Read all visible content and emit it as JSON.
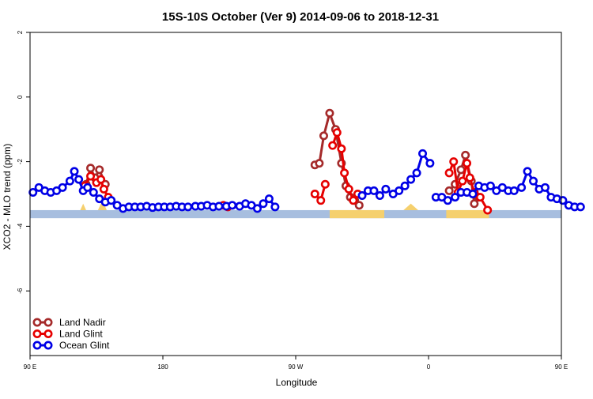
{
  "chart_data": {
    "type": "line",
    "title": "15S-10S October (Ver 9)   2014-09-06 to 2018-12-31",
    "xlabel": "Longitude",
    "ylabel": "XCO2 - MLO trend (ppm)",
    "xlim": [
      90,
      450
    ],
    "ylim": [
      -8,
      2
    ],
    "x_ticks": [
      {
        "value": 90,
        "label": "90 E"
      },
      {
        "value": 180,
        "label": "180"
      },
      {
        "value": 270,
        "label": "90 W"
      },
      {
        "value": 360,
        "label": "0"
      },
      {
        "value": 450,
        "label": "90 E"
      },
      {
        "value": 540,
        "label": "180"
      }
    ],
    "y_ticks": [
      {
        "value": 2,
        "label": "2"
      },
      {
        "value": 0,
        "label": "0"
      },
      {
        "value": -2,
        "label": "-2"
      },
      {
        "value": -4,
        "label": "-4"
      },
      {
        "value": -6,
        "label": "-6"
      }
    ],
    "land_band": {
      "ymin": -3.75,
      "ymax": -3.5,
      "ocean_color": "#a7bedf",
      "land_color": "#f5d06e"
    },
    "land_segments": [
      [
        293,
        330
      ],
      [
        372,
        401
      ]
    ],
    "land_bumps": [
      [
        124,
        128,
        -3.3
      ],
      [
        136,
        142,
        -3.2
      ],
      [
        481,
        485,
        -3.3
      ],
      [
        491,
        495,
        -3.2
      ],
      [
        343,
        353,
        -3.3
      ]
    ],
    "legend": {
      "position": "bottom-left",
      "entries": [
        "Land Nadir",
        "Land Glint",
        "Ocean Glint"
      ]
    },
    "series": [
      {
        "name": "Land Nadir",
        "color": "#a52a2a",
        "segments": [
          [
            [
              128,
              -2.7
            ],
            [
              131,
              -2.2
            ],
            [
              134,
              -2.5
            ],
            [
              137,
              -2.25
            ],
            [
              141,
              -2.7
            ]
          ],
          [
            [
              283,
              -2.1
            ],
            [
              286,
              -2.05
            ],
            [
              289,
              -1.2
            ],
            [
              293,
              -0.5
            ],
            [
              297,
              -1.0
            ],
            [
              301,
              -2.05
            ],
            [
              304,
              -2.75
            ],
            [
              307,
              -3.1
            ],
            [
              310,
              -3.2
            ],
            [
              313,
              -3.35
            ]
          ],
          [
            [
              374,
              -2.9
            ],
            [
              378,
              -2.7
            ],
            [
              382,
              -2.25
            ],
            [
              385,
              -1.8
            ],
            [
              389,
              -2.6
            ],
            [
              391,
              -3.3
            ],
            [
              394,
              -3.1
            ]
          ],
          [
            [
              483,
              -2.7
            ],
            [
              486,
              -2.2
            ],
            [
              489,
              -2.5
            ],
            [
              492,
              -2.25
            ],
            [
              496,
              -2.7
            ]
          ]
        ]
      },
      {
        "name": "Land Glint",
        "color": "#e60000",
        "segments": [
          [
            [
              127,
              -2.75
            ],
            [
              131,
              -2.45
            ],
            [
              135,
              -2.65
            ],
            [
              138,
              -2.55
            ],
            [
              140,
              -2.85
            ],
            [
              143,
              -3.1
            ]
          ],
          [
            [
              221,
              -3.35
            ],
            [
              224,
              -3.4
            ]
          ],
          [
            [
              283,
              -3.0
            ],
            [
              287,
              -3.2
            ],
            [
              290,
              -2.7
            ]
          ],
          [
            [
              295,
              -1.5
            ],
            [
              298,
              -1.1
            ],
            [
              301,
              -1.6
            ],
            [
              303,
              -2.35
            ],
            [
              306,
              -2.85
            ],
            [
              309,
              -3.2
            ],
            [
              312,
              -3.0
            ]
          ],
          [
            [
              374,
              -2.35
            ],
            [
              377,
              -2.0
            ],
            [
              380,
              -2.95
            ],
            [
              383,
              -2.6
            ],
            [
              386,
              -2.05
            ],
            [
              388,
              -2.5
            ],
            [
              391,
              -2.95
            ],
            [
              395,
              -3.1
            ],
            [
              400,
              -3.5
            ]
          ],
          [
            [
              482,
              -2.75
            ],
            [
              486,
              -2.45
            ],
            [
              490,
              -2.65
            ],
            [
              493,
              -2.55
            ],
            [
              495,
              -2.85
            ],
            [
              498,
              -3.1
            ]
          ]
        ]
      },
      {
        "name": "Ocean Glint",
        "color": "#0000e6",
        "segments": [
          [
            [
              92,
              -2.95
            ],
            [
              96,
              -2.8
            ],
            [
              100,
              -2.9
            ],
            [
              104,
              -2.95
            ],
            [
              108,
              -2.9
            ],
            [
              112,
              -2.8
            ],
            [
              117,
              -2.6
            ],
            [
              120,
              -2.3
            ],
            [
              123,
              -2.55
            ],
            [
              126,
              -2.9
            ],
            [
              129,
              -2.8
            ],
            [
              133,
              -2.95
            ],
            [
              137,
              -3.15
            ],
            [
              141,
              -3.25
            ],
            [
              145,
              -3.2
            ],
            [
              149,
              -3.35
            ],
            [
              153,
              -3.45
            ],
            [
              157,
              -3.4
            ],
            [
              161,
              -3.4
            ],
            [
              165,
              -3.4
            ],
            [
              169,
              -3.38
            ],
            [
              173,
              -3.42
            ],
            [
              177,
              -3.4
            ],
            [
              181,
              -3.4
            ],
            [
              185,
              -3.4
            ],
            [
              189,
              -3.38
            ],
            [
              193,
              -3.4
            ],
            [
              197,
              -3.4
            ],
            [
              202,
              -3.38
            ],
            [
              206,
              -3.38
            ],
            [
              210,
              -3.35
            ],
            [
              214,
              -3.4
            ],
            [
              218,
              -3.38
            ],
            [
              223,
              -3.38
            ],
            [
              227,
              -3.35
            ],
            [
              232,
              -3.38
            ],
            [
              236,
              -3.3
            ],
            [
              240,
              -3.35
            ],
            [
              244,
              -3.45
            ],
            [
              248,
              -3.3
            ],
            [
              252,
              -3.15
            ],
            [
              256,
              -3.4
            ]
          ],
          [
            [
              315,
              -3.05
            ],
            [
              319,
              -2.9
            ],
            [
              323,
              -2.9
            ],
            [
              327,
              -3.05
            ],
            [
              331,
              -2.85
            ],
            [
              336,
              -3.0
            ],
            [
              340,
              -2.9
            ],
            [
              344,
              -2.75
            ],
            [
              348,
              -2.55
            ],
            [
              352,
              -2.35
            ],
            [
              356,
              -1.75
            ],
            [
              361,
              -2.05
            ]
          ],
          [
            [
              365,
              -3.1
            ],
            [
              369,
              -3.1
            ],
            [
              373,
              -3.2
            ],
            [
              378,
              -3.1
            ],
            [
              382,
              -2.95
            ],
            [
              386,
              -2.95
            ],
            [
              390,
              -3.0
            ],
            [
              394,
              -2.75
            ],
            [
              398,
              -2.8
            ],
            [
              402,
              -2.75
            ],
            [
              406,
              -2.9
            ],
            [
              410,
              -2.8
            ],
            [
              414,
              -2.9
            ],
            [
              418,
              -2.9
            ],
            [
              423,
              -2.8
            ],
            [
              427,
              -2.3
            ],
            [
              431,
              -2.6
            ],
            [
              435,
              -2.85
            ],
            [
              439,
              -2.8
            ],
            [
              443,
              -3.1
            ],
            [
              447,
              -3.15
            ],
            [
              451,
              -3.2
            ],
            [
              455,
              -3.35
            ],
            [
              459,
              -3.4
            ],
            [
              463,
              -3.4
            ]
          ]
        ]
      }
    ]
  }
}
